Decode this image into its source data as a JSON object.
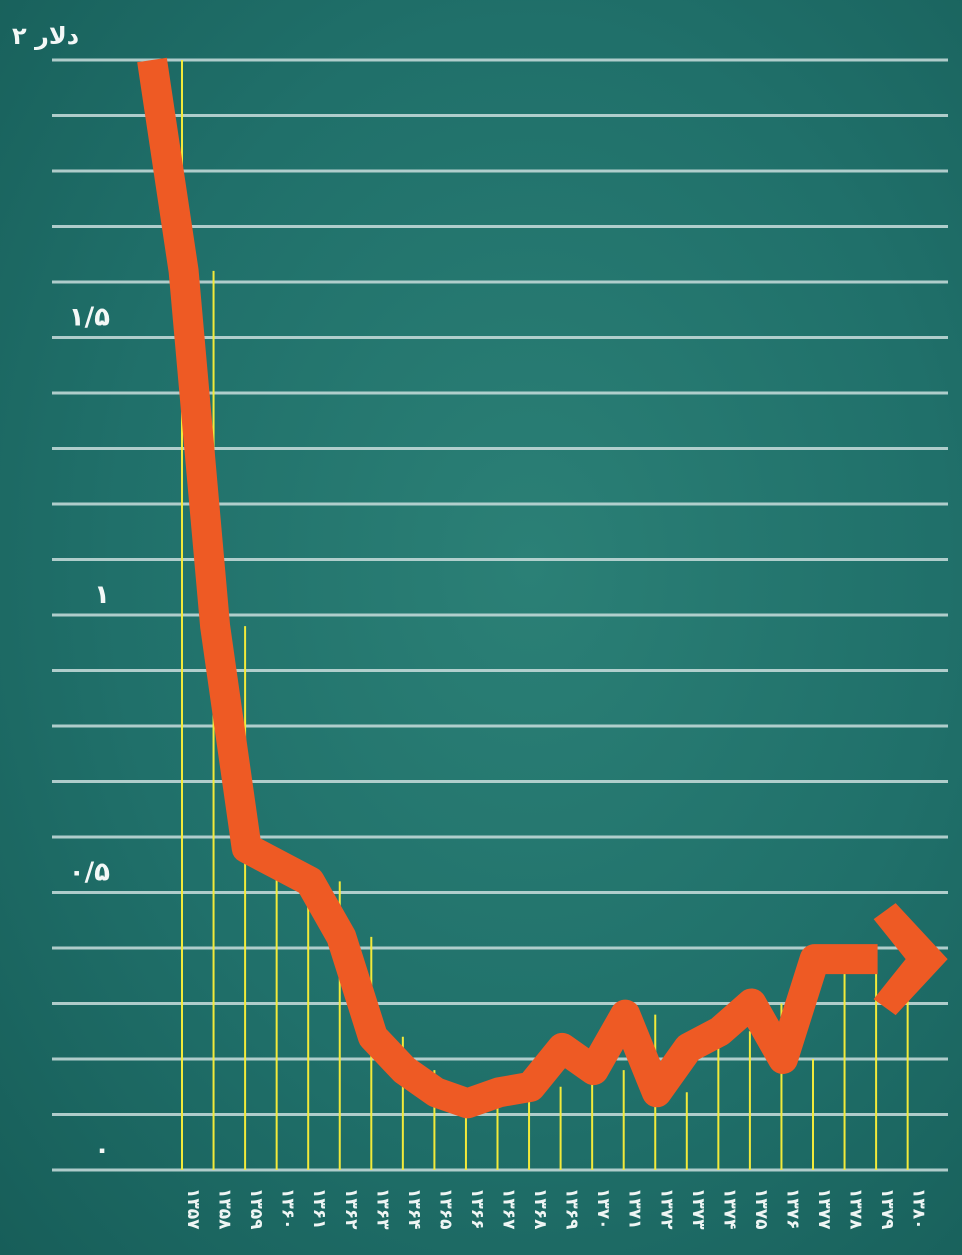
{
  "chart_data": {
    "type": "line",
    "title": "۲ دلار",
    "y_tick_labels": [
      {
        "value": 0,
        "label": "۰"
      },
      {
        "value": 0.5,
        "label": "۰/۵"
      },
      {
        "value": 1,
        "label": "۱"
      },
      {
        "value": 1.5,
        "label": "۱/۵"
      }
    ],
    "ylim": [
      0,
      2
    ],
    "grid": true,
    "categories": [
      "۱۳۵۷",
      "۱۳۵۸",
      "۱۳۵۹",
      "۱۳۶۰",
      "۱۳۶۱",
      "۱۳۶۲",
      "۱۳۶۳",
      "۱۳۶۴",
      "۱۳۶۵",
      "۱۳۶۶",
      "۱۳۶۷",
      "۱۳۶۸",
      "۱۳۶۹",
      "۱۳۷۰",
      "۱۳۷۱",
      "۱۳۷۲",
      "۱۳۷۳",
      "۱۳۷۴",
      "۱۳۷۵",
      "۱۳۷۶",
      "۱۳۷۷",
      "۱۳۷۸",
      "۱۳۷۹",
      "۱۳۸۰"
    ],
    "values": [
      2.0,
      1.62,
      0.98,
      0.58,
      0.55,
      0.52,
      0.42,
      0.24,
      0.18,
      0.14,
      0.12,
      0.14,
      0.15,
      0.22,
      0.18,
      0.28,
      0.14,
      0.22,
      0.25,
      0.3,
      0.2,
      0.38,
      0.38,
      0.38
    ],
    "colors": {
      "line": "#ee5a24",
      "drop_lines": "#f2ea3a",
      "grid": "#c9dedd",
      "background": "#1f6e68"
    },
    "arrow_end": true
  }
}
